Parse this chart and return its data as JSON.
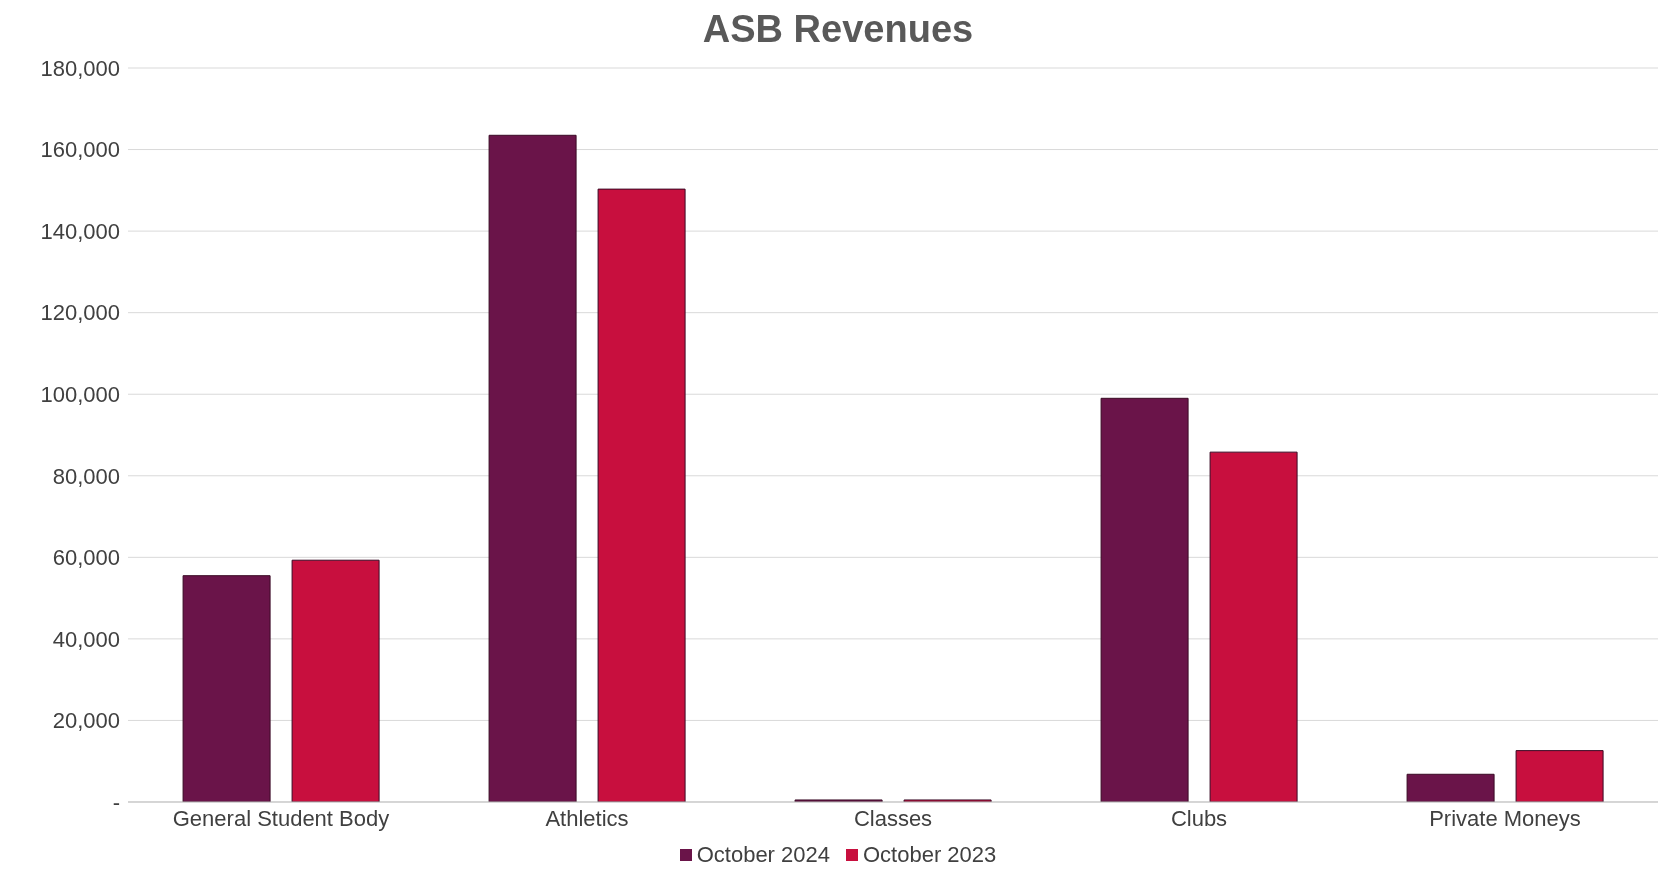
{
  "chart_data": {
    "type": "bar",
    "title": "ASB Revenues",
    "categories": [
      "General Student Body",
      "Athletics",
      "Classes",
      "Clubs",
      "Private Moneys"
    ],
    "series": [
      {
        "name": "October 2024",
        "color": "#6a1449",
        "values": [
          55500,
          163500,
          500,
          99000,
          6800
        ]
      },
      {
        "name": "October 2023",
        "color": "#c80f3e",
        "values": [
          59300,
          150300,
          500,
          85800,
          12600
        ]
      }
    ],
    "ylim": [
      0,
      180000
    ],
    "yticks": [
      {
        "value": 0,
        "label": "-"
      },
      {
        "value": 20000,
        "label": "20,000"
      },
      {
        "value": 40000,
        "label": "40,000"
      },
      {
        "value": 60000,
        "label": "60,000"
      },
      {
        "value": 80000,
        "label": "80,000"
      },
      {
        "value": 100000,
        "label": "100,000"
      },
      {
        "value": 120000,
        "label": "120,000"
      },
      {
        "value": 140000,
        "label": "140,000"
      },
      {
        "value": 160000,
        "label": "160,000"
      },
      {
        "value": 180000,
        "label": "180,000"
      }
    ],
    "grid": "y",
    "legend": "bottom"
  }
}
